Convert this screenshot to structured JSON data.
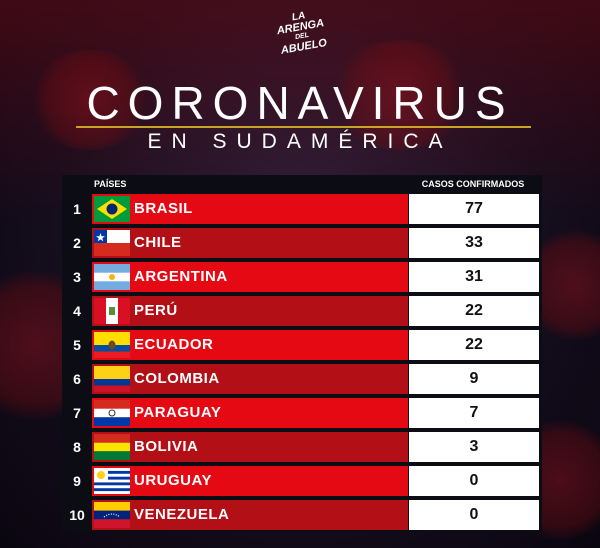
{
  "logo": {
    "line1": "LA",
    "line2": "ARENGA",
    "line3": "DEL",
    "line4": "ABUELO"
  },
  "title": "CORONAVIRUS",
  "subtitle": "EN SUDAMÉRICA",
  "table": {
    "header_country": "PAÍSES",
    "header_cases": "CASOS CONFIRMADOS",
    "rows": [
      {
        "rank": "1",
        "country": "BRASIL",
        "cases": "77",
        "flag": "brazil-flag"
      },
      {
        "rank": "2",
        "country": "CHILE",
        "cases": "33",
        "flag": "chile-flag"
      },
      {
        "rank": "3",
        "country": "ARGENTINA",
        "cases": "31",
        "flag": "argentina-flag"
      },
      {
        "rank": "4",
        "country": "PERÚ",
        "cases": "22",
        "flag": "peru-flag"
      },
      {
        "rank": "5",
        "country": "ECUADOR",
        "cases": "22",
        "flag": "ecuador-flag"
      },
      {
        "rank": "6",
        "country": "COLOMBIA",
        "cases": "9",
        "flag": "colombia-flag"
      },
      {
        "rank": "7",
        "country": "PARAGUAY",
        "cases": "7",
        "flag": "paraguay-flag"
      },
      {
        "rank": "8",
        "country": "BOLIVIA",
        "cases": "3",
        "flag": "bolivia-flag"
      },
      {
        "rank": "9",
        "country": "URUGUAY",
        "cases": "0",
        "flag": "uruguay-flag"
      },
      {
        "rank": "10",
        "country": "VENEZUELA",
        "cases": "0",
        "flag": "venezuela-flag"
      }
    ]
  },
  "colors": {
    "row_primary": "#e50914",
    "row_secondary": "#b30f16",
    "rule": "#c9a227",
    "background": "#150e1e"
  }
}
